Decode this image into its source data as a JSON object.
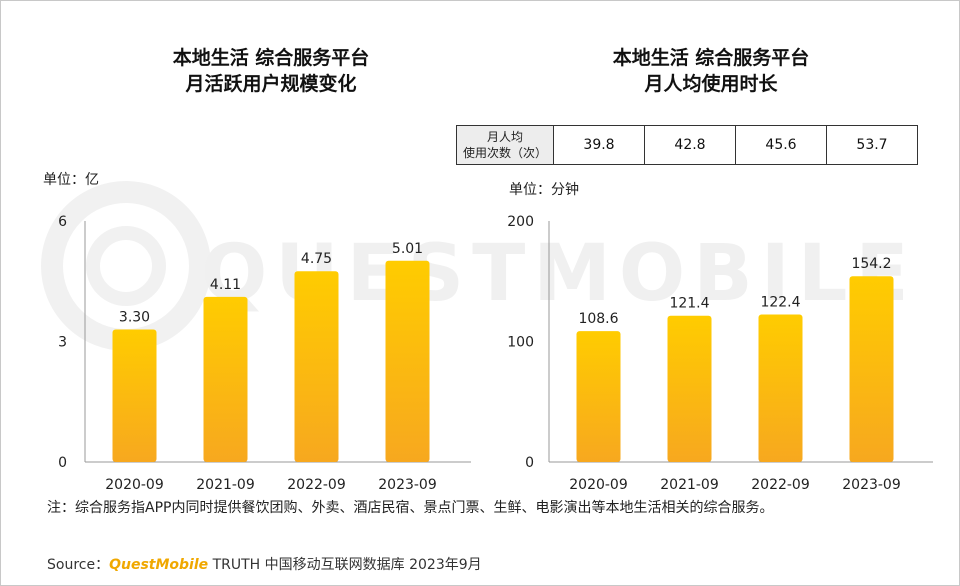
{
  "colors": {
    "bar_top": "#ffcc00",
    "bar_bottom": "#f7a81f",
    "axis": "#999999",
    "brand": "#f0a800"
  },
  "watermark": "QUESTMOBILE",
  "chart_data": [
    {
      "type": "bar",
      "title_line1": "本地生活 综合服务平台",
      "title_line2": "月活跃用户规模变化",
      "unit": "单位：亿",
      "categories": [
        "2020-09",
        "2021-09",
        "2022-09",
        "2023-09"
      ],
      "values": [
        3.3,
        4.11,
        4.75,
        5.01
      ],
      "value_labels": [
        "3.30",
        "4.11",
        "4.75",
        "5.01"
      ],
      "y_ticks": [
        "0",
        "3",
        "6"
      ],
      "ylim": [
        0,
        6
      ]
    },
    {
      "type": "bar",
      "title_line1": "本地生活 综合服务平台",
      "title_line2": "月人均使用时长",
      "unit": "单位：分钟",
      "categories": [
        "2020-09",
        "2021-09",
        "2022-09",
        "2023-09"
      ],
      "values": [
        108.6,
        121.4,
        122.4,
        154.2
      ],
      "value_labels": [
        "108.6",
        "121.4",
        "122.4",
        "154.2"
      ],
      "y_ticks": [
        "0",
        "100",
        "200"
      ],
      "ylim": [
        0,
        200
      ]
    }
  ],
  "table": {
    "header_line1": "月人均",
    "header_line2": "使用次数（次）",
    "values": [
      "39.8",
      "42.8",
      "45.6",
      "53.7"
    ]
  },
  "note": "注：综合服务指APP内同时提供餐饮团购、外卖、酒店民宿、景点门票、生鲜、电影演出等本地生活相关的综合服务。",
  "source": {
    "prefix": "Source：",
    "brand": "QuestMobile",
    "suffix": " TRUTH 中国移动互联网数据库 2023年9月"
  }
}
